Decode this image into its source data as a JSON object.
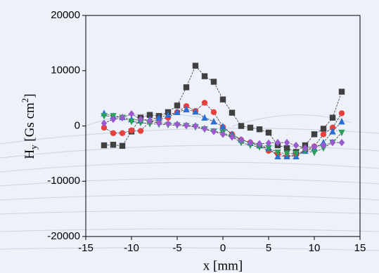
{
  "chart_data": {
    "type": "line",
    "x_label": "x [mm]",
    "y_label": {
      "main": "H",
      "sub": "y",
      "unit": " [Gs cm",
      "sup": "2",
      "close": "]"
    },
    "x": [
      -13,
      -12,
      -11,
      -10,
      -9,
      -8,
      -7,
      -6,
      -5,
      -4,
      -3,
      -2,
      -1,
      0,
      1,
      2,
      3,
      4,
      5,
      6,
      7,
      8,
      9,
      10,
      11,
      12,
      13
    ],
    "xlim": [
      -15,
      15
    ],
    "xticks": [
      -15,
      -10,
      -5,
      0,
      5,
      10,
      15
    ],
    "ylim": [
      -20000,
      20000
    ],
    "yticks": [
      -20000,
      -10000,
      0,
      10000,
      20000
    ],
    "grid": false,
    "series": [
      {
        "color": "#404040",
        "marker": "square",
        "values": [
          -3500,
          -3400,
          -3600,
          -1000,
          1500,
          2000,
          1800,
          2500,
          3700,
          7000,
          10900,
          9000,
          8000,
          4800,
          2400,
          0,
          -300,
          -600,
          -1200,
          -3500,
          -4000,
          -4700,
          -3500,
          -1500,
          -500,
          1500,
          6200
        ]
      },
      {
        "color": "#e8403c",
        "marker": "circle",
        "values": [
          -300,
          -1300,
          -1300,
          -800,
          -900,
          800,
          1200,
          1500,
          2500,
          3600,
          2700,
          4200,
          2500,
          -200,
          -1500,
          -2500,
          -3000,
          -3600,
          -4500,
          -5000,
          -5500,
          -5200,
          -4500,
          -3700,
          -1500,
          -300,
          2300
        ]
      },
      {
        "color": "#2a6fd6",
        "marker": "triangle-up",
        "values": [
          2300,
          1800,
          1600,
          1200,
          1000,
          1200,
          1500,
          2000,
          2500,
          3000,
          2600,
          1500,
          800,
          -100,
          -1500,
          -2500,
          -3000,
          -3500,
          -4000,
          -5500,
          -5500,
          -5500,
          -4500,
          -4000,
          -3000,
          -1000,
          800
        ]
      },
      {
        "color": "#2aa05a",
        "marker": "triangle-down",
        "values": [
          1800,
          1800,
          1500,
          800,
          600,
          400,
          300,
          200,
          100,
          0,
          -200,
          -600,
          -1000,
          -1200,
          -2000,
          -3000,
          -3500,
          -3800,
          -4000,
          -4800,
          -5000,
          -5000,
          -4500,
          -4800,
          -4000,
          -3000,
          -1200
        ]
      },
      {
        "color": "#9b59d0",
        "marker": "diamond",
        "values": [
          500,
          1200,
          1500,
          2200,
          1200,
          900,
          500,
          400,
          300,
          100,
          0,
          -500,
          -1000,
          -1500,
          -2000,
          -2500,
          -3000,
          -3200,
          -3100,
          -3000,
          -3000,
          -3500,
          -4000,
          -3700,
          -3500,
          -3000,
          -3000
        ]
      }
    ]
  }
}
